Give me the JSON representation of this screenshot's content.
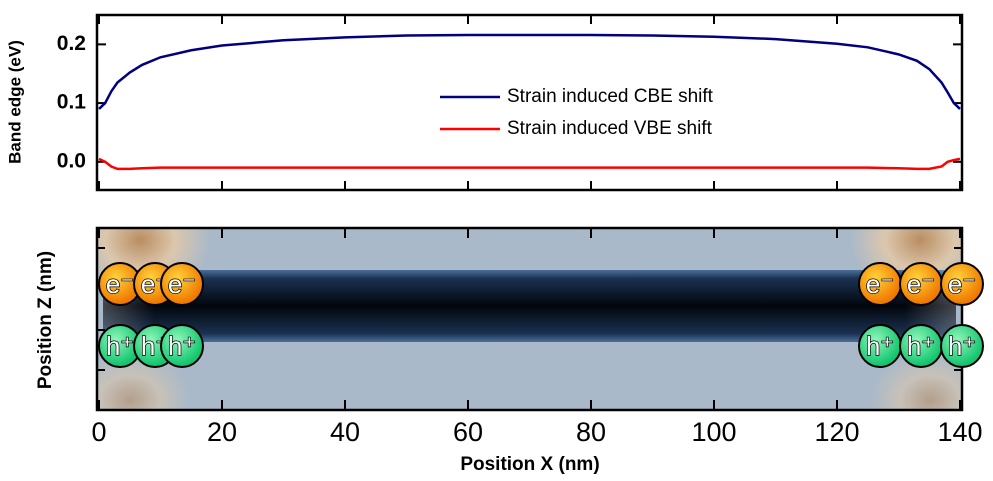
{
  "chart_data": [
    {
      "type": "line",
      "ylabel": "Band edge (eV)",
      "x": [
        0,
        1,
        2,
        3,
        5,
        7,
        10,
        15,
        20,
        30,
        40,
        50,
        60,
        70,
        80,
        90,
        100,
        110,
        120,
        125,
        130,
        133,
        135,
        137,
        138,
        139,
        140
      ],
      "series": [
        {
          "name": "Strain induced CBE shift",
          "color": "#000080",
          "values": [
            0.09,
            0.1,
            0.12,
            0.135,
            0.152,
            0.165,
            0.178,
            0.19,
            0.198,
            0.207,
            0.212,
            0.215,
            0.216,
            0.216,
            0.216,
            0.215,
            0.213,
            0.209,
            0.201,
            0.195,
            0.183,
            0.172,
            0.158,
            0.135,
            0.118,
            0.1,
            0.09
          ]
        },
        {
          "name": "Strain induced VBE shift",
          "color": "#ff0000",
          "values": [
            0.005,
            0.0,
            -0.008,
            -0.012,
            -0.012,
            -0.011,
            -0.01,
            -0.01,
            -0.01,
            -0.01,
            -0.01,
            -0.01,
            -0.01,
            -0.01,
            -0.01,
            -0.01,
            -0.01,
            -0.01,
            -0.01,
            -0.01,
            -0.011,
            -0.012,
            -0.012,
            -0.008,
            0.0,
            0.003,
            0.005
          ]
        }
      ],
      "xlim": [
        0,
        140
      ],
      "xticks": [
        0,
        20,
        40,
        60,
        80,
        100,
        120,
        140
      ],
      "ylim": [
        -0.048,
        0.25
      ],
      "yticks": [
        {
          "value": 0,
          "label": "0.0"
        },
        0.1,
        0.2
      ]
    },
    {
      "type": "heatmap",
      "xlabel": "Position X (nm)",
      "ylabel": "Position Z (nm)",
      "xlim": [
        0,
        140
      ],
      "xticks": [
        0,
        20,
        40,
        60,
        80,
        100,
        120,
        140
      ],
      "electron_label": "e⁻",
      "hole_label": "h⁺"
    }
  ]
}
